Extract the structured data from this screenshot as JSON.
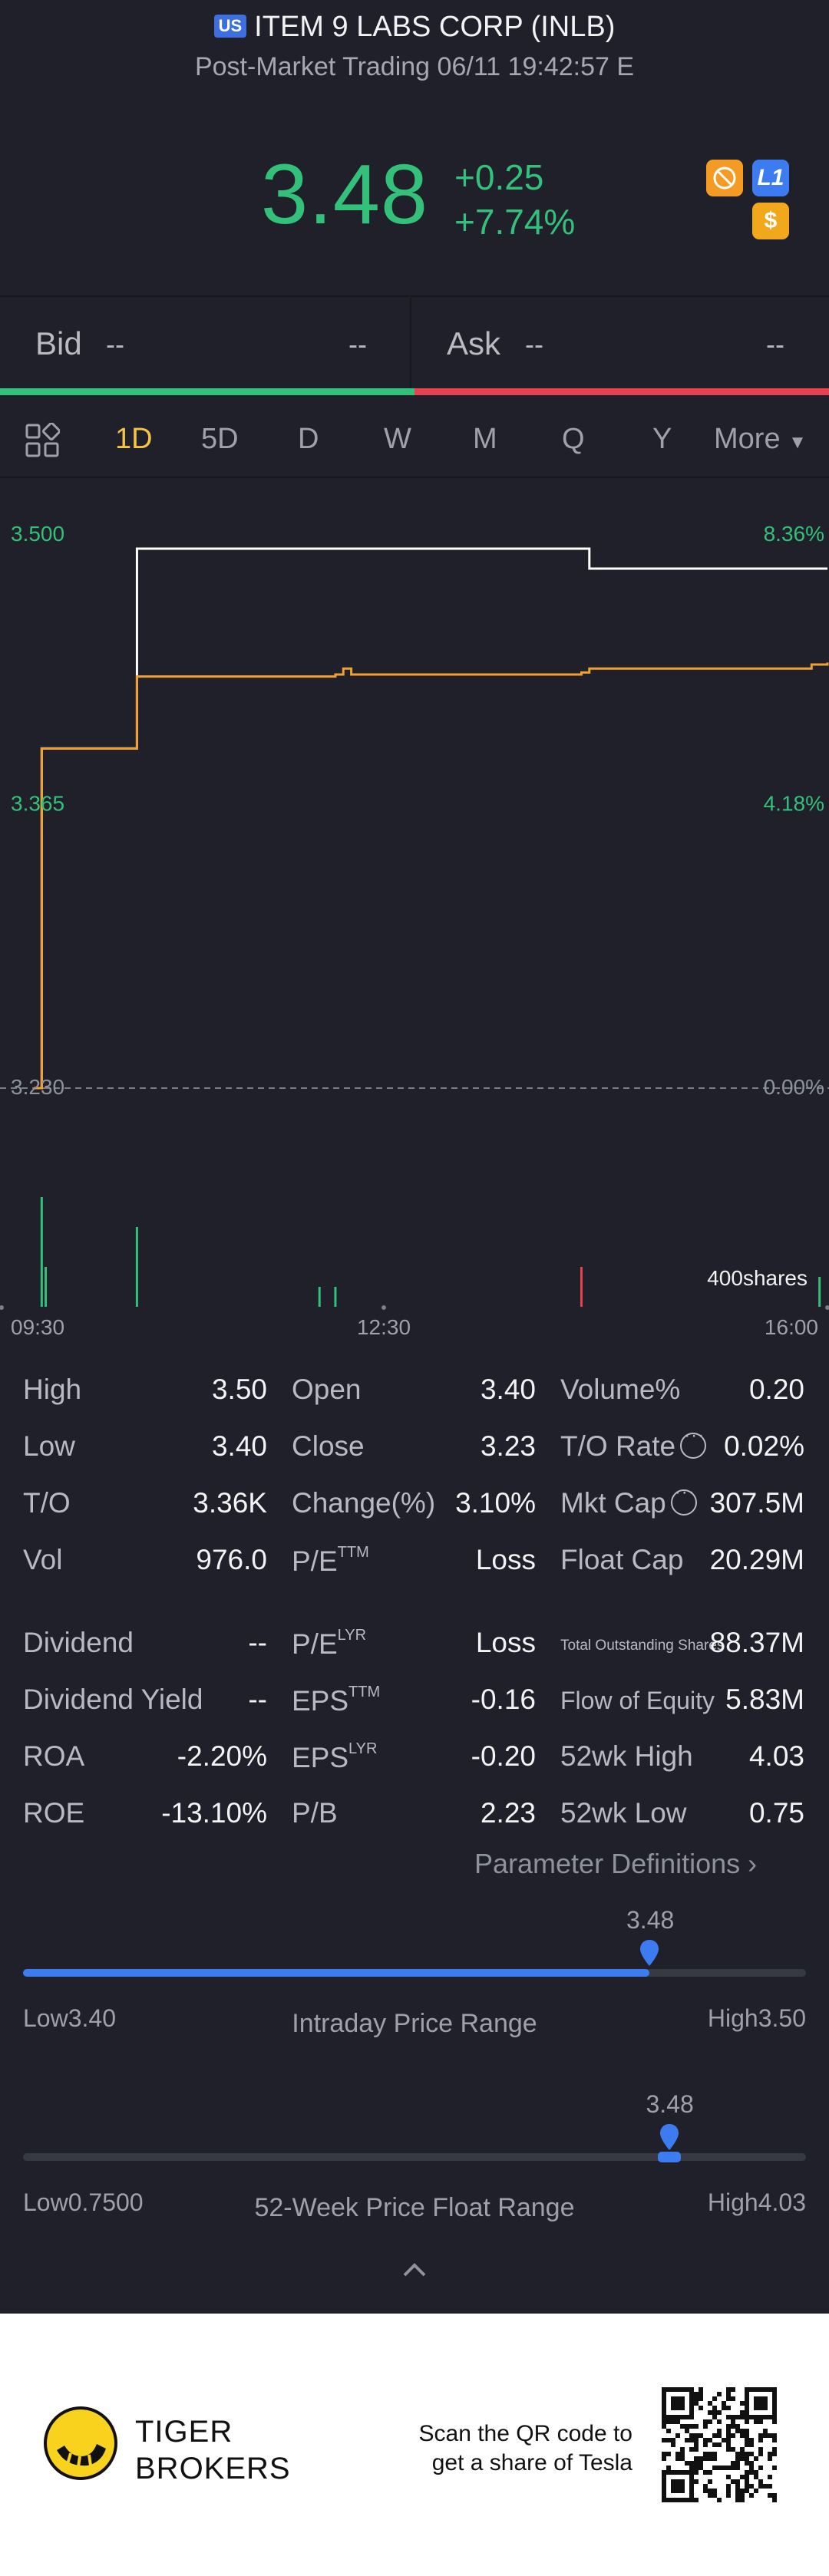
{
  "header": {
    "market_flag": "US",
    "title": "ITEM 9 LABS CORP (INLB)",
    "subtitle": "Post-Market Trading 06/11 19:42:57 E",
    "price": "3.48",
    "change": "+0.25",
    "change_pct": "+7.74%",
    "badges": [
      {
        "icon": "no-margin-icon",
        "color": "#f59a23"
      },
      {
        "icon": "level1-icon",
        "label": "L1",
        "color": "#3d7cf0"
      },
      {
        "icon": "dollar-icon",
        "label": "$",
        "color": "#f2a81d"
      }
    ]
  },
  "quote": {
    "bid_label": "Bid",
    "bid_value": "--",
    "bid_size": "--",
    "ask_label": "Ask",
    "ask_value": "--",
    "ask_size": "--"
  },
  "tabs": [
    {
      "label": "1D",
      "active": true
    },
    {
      "label": "5D"
    },
    {
      "label": "D"
    },
    {
      "label": "W"
    },
    {
      "label": "M"
    },
    {
      "label": "Q"
    },
    {
      "label": "Y"
    },
    {
      "label": "More"
    }
  ],
  "chart_data": {
    "type": "line",
    "y_left_ticks": [
      "3.500",
      "3.365",
      "3.230"
    ],
    "y_right_ticks": [
      "8.36%",
      "4.18%",
      "0.00%"
    ],
    "x_ticks": [
      "09:30",
      "12:30",
      "16:00"
    ],
    "ylim": [
      3.23,
      3.5
    ],
    "prev_close": 3.23,
    "volume_label": "400shares",
    "series": [
      {
        "color": "#ffffff",
        "points": [
          [
            0,
            3.23
          ],
          [
            0.01,
            3.4
          ],
          [
            0.12,
            3.4
          ],
          [
            0.13,
            3.5
          ],
          [
            0.69,
            3.5
          ],
          [
            0.7,
            3.49
          ],
          [
            1.0,
            3.49
          ]
        ]
      },
      {
        "color": "#f0a030",
        "points": [
          [
            0,
            3.23
          ],
          [
            0.01,
            3.4
          ],
          [
            0.12,
            3.4
          ],
          [
            0.13,
            3.436
          ],
          [
            0.38,
            3.437
          ],
          [
            0.39,
            3.44
          ],
          [
            0.4,
            3.437
          ],
          [
            0.69,
            3.438
          ],
          [
            0.7,
            3.44
          ],
          [
            0.98,
            3.442
          ],
          [
            1.0,
            3.443
          ]
        ]
      }
    ],
    "volume_bars": [
      {
        "x": 0.01,
        "v": 0.55,
        "color": "#33c07a"
      },
      {
        "x": 0.015,
        "v": 0.2,
        "color": "#33c07a"
      },
      {
        "x": 0.13,
        "v": 0.4,
        "color": "#33c07a"
      },
      {
        "x": 0.36,
        "v": 0.1,
        "color": "#33c07a"
      },
      {
        "x": 0.38,
        "v": 0.1,
        "color": "#33c07a"
      },
      {
        "x": 0.69,
        "v": 0.2,
        "color": "#e8414f"
      },
      {
        "x": 0.99,
        "v": 0.15,
        "color": "#33c07a"
      }
    ]
  },
  "stats": {
    "high_label": "High",
    "high": "3.50",
    "open_label": "Open",
    "open": "3.40",
    "volpct_label": "Volume%",
    "volpct": "0.20",
    "low_label": "Low",
    "low": "3.40",
    "close_label": "Close",
    "close": "3.23",
    "torate_label": "T/O Rate",
    "torate": "0.02%",
    "to_label": "T/O",
    "to": "3.36K",
    "changepct_label": "Change(%)",
    "changepct": "3.10%",
    "mktcap_label": "Mkt Cap",
    "mktcap": "307.5M",
    "vol_label": "Vol",
    "vol": "976.0",
    "pe_ttm_label": "P/E",
    "pe_ttm_sup": "TTM",
    "pe_ttm": "Loss",
    "floatcap_label": "Float Cap",
    "floatcap": "20.29M",
    "dividend_label": "Dividend",
    "dividend": "--",
    "pe_lyr_label": "P/E",
    "pe_lyr_sup": "LYR",
    "pe_lyr": "Loss",
    "tos_label": "Total Outstanding Shares",
    "tos": "88.37M",
    "divyield_label": "Dividend Yield",
    "divyield": "--",
    "eps_ttm_label": "EPS",
    "eps_ttm_sup": "TTM",
    "eps_ttm": "-0.16",
    "flow_label": "Flow of Equity",
    "flow": "5.83M",
    "roa_label": "ROA",
    "roa": "-2.20%",
    "eps_lyr_label": "EPS",
    "eps_lyr_sup": "LYR",
    "eps_lyr": "-0.20",
    "high52_label": "52wk High",
    "high52": "4.03",
    "roe_label": "ROE",
    "roe": "-13.10%",
    "pb_label": "P/B",
    "pb": "2.23",
    "low52_label": "52wk Low",
    "low52": "0.75"
  },
  "param_definitions": "Parameter Definitions",
  "intraday_range": {
    "current": "3.48",
    "level": 0.8,
    "low_label": "Low",
    "low": "3.40",
    "high_label": "High",
    "high": "3.50",
    "title": "Intraday Price Range"
  },
  "week52_range": {
    "current": "3.48",
    "level": 0.825,
    "low_label": "Low",
    "low": "0.7500",
    "high_label": "High",
    "high": "4.03",
    "title": "52-Week Price Float Range"
  },
  "footer": {
    "brand_line1": "TIGER",
    "brand_line2": "BROKERS",
    "scan_line1": "Scan the QR code to",
    "scan_line2": "get a share of Tesla"
  }
}
